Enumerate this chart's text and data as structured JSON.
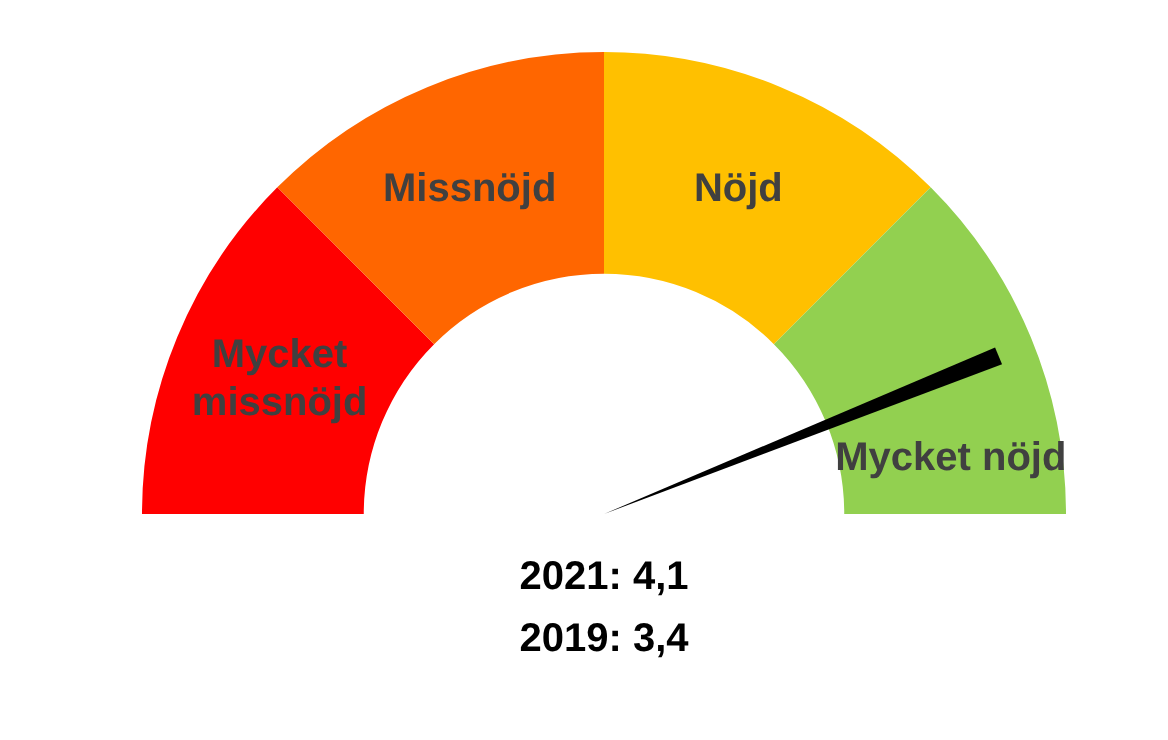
{
  "chart_data": {
    "type": "donut",
    "categories": [
      "Mycket missnöjd",
      "Missnöjd",
      "Nöjd",
      "Mycket nöjd"
    ],
    "values": [
      25,
      25,
      25,
      25
    ],
    "colors": [
      "#ff0000",
      "#ff6600",
      "#ffc000",
      "#92d050"
    ],
    "needle": "Mycket nöjd",
    "annotations": [
      "2021: 4,1",
      "2019: 3,4"
    ],
    "legend": false
  }
}
